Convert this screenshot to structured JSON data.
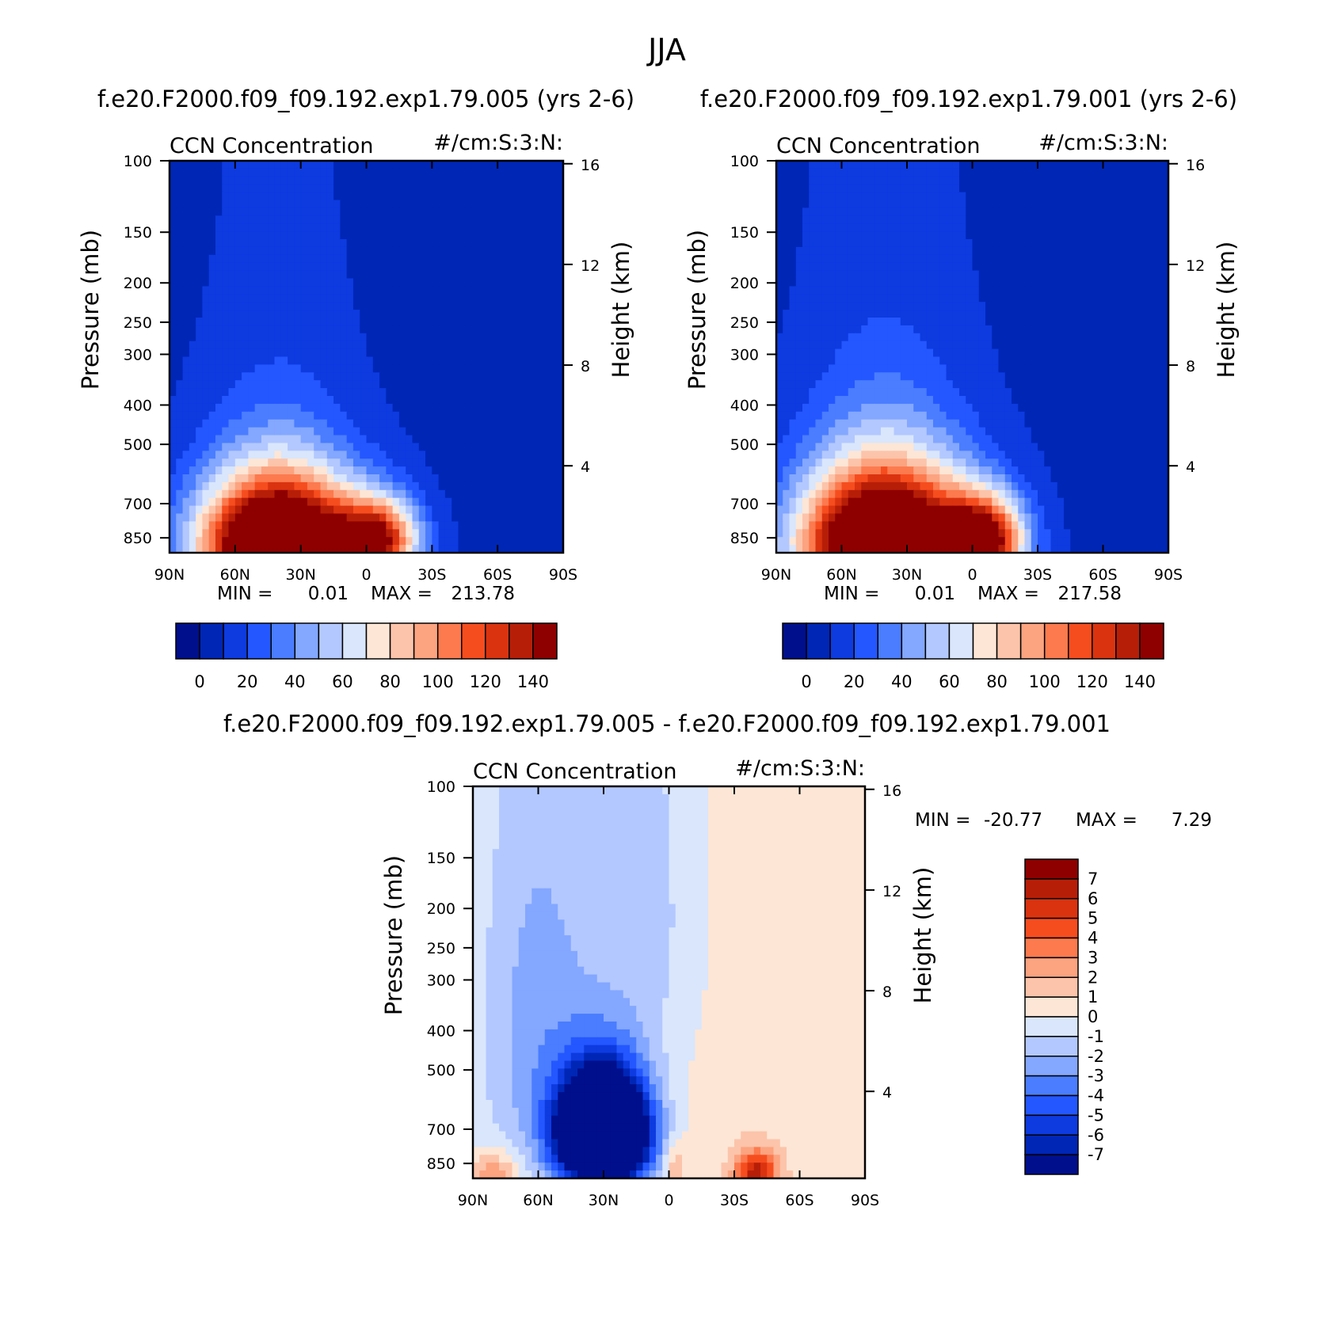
{
  "page_title": "JJA",
  "chart_data": [
    {
      "type": "heatmap",
      "id": "panel1",
      "title": "f.e20.F2000.f09_f09.192.exp1.79.005 (yrs 2-6)",
      "left_label": "CCN Concentration",
      "right_label": "#/cm:S:3:N:",
      "xlabel": "",
      "ylabel": "Pressure (mb)",
      "ylabel_right": "Height (km)",
      "x_ticks": [
        "90N",
        "60N",
        "30N",
        "0",
        "30S",
        "60S",
        "90S"
      ],
      "x_tick_values": [
        90,
        60,
        30,
        0,
        -30,
        -60,
        -90
      ],
      "y_ticks": [
        "100",
        "150",
        "200",
        "250",
        "300",
        "400",
        "500",
        "700",
        "850"
      ],
      "y_tick_values": [
        100,
        150,
        200,
        250,
        300,
        400,
        500,
        700,
        850
      ],
      "y_range": [
        100,
        925
      ],
      "height_ticks": [
        "16",
        "12",
        "8",
        "4"
      ],
      "height_tick_values": [
        16,
        12,
        8,
        4
      ],
      "min_label": "MIN =",
      "min_value": "0.01",
      "max_label": "MAX =",
      "max_value": "213.78",
      "colorbar_labels": [
        "0",
        "20",
        "40",
        "60",
        "80",
        "100",
        "120",
        "140"
      ],
      "contour_levels": [
        0,
        10,
        20,
        30,
        40,
        50,
        60,
        70,
        80,
        90,
        100,
        110,
        120,
        130,
        140
      ],
      "colors": [
        "#000f8c",
        "#0026b6",
        "#0d3be0",
        "#2457ff",
        "#4a7dff",
        "#84a7ff",
        "#b3c8ff",
        "#d9e6fc",
        "#fde6d6",
        "#fcc4aa",
        "#fca380",
        "#fc7a4e",
        "#f64d1f",
        "#da3310",
        "#b71e08",
        "#8e0000"
      ],
      "field": {
        "background": 7,
        "centers": [
          [
            40,
            880,
            215,
            35,
            300
          ],
          [
            -5,
            860,
            120,
            18,
            180
          ],
          [
            40,
            470,
            8,
            35,
            500
          ]
        ]
      }
    },
    {
      "type": "heatmap",
      "id": "panel2",
      "title": "f.e20.F2000.f09_f09.192.exp1.79.001 (yrs 2-6)",
      "left_label": "CCN Concentration",
      "right_label": "#/cm:S:3:N:",
      "xlabel": "",
      "ylabel": "Pressure (mb)",
      "ylabel_right": "Height (km)",
      "x_ticks": [
        "90N",
        "60N",
        "30N",
        "0",
        "30S",
        "60S",
        "90S"
      ],
      "x_tick_values": [
        90,
        60,
        30,
        0,
        -30,
        -60,
        -90
      ],
      "y_ticks": [
        "100",
        "150",
        "200",
        "250",
        "300",
        "400",
        "500",
        "700",
        "850"
      ],
      "y_tick_values": [
        100,
        150,
        200,
        250,
        300,
        400,
        500,
        700,
        850
      ],
      "y_range": [
        100,
        925
      ],
      "height_ticks": [
        "16",
        "12",
        "8",
        "4"
      ],
      "height_tick_values": [
        16,
        12,
        8,
        4
      ],
      "min_label": "MIN =",
      "min_value": "0.01",
      "max_label": "MAX =",
      "max_value": "217.58",
      "colorbar_labels": [
        "0",
        "20",
        "40",
        "60",
        "80",
        "100",
        "120",
        "140"
      ],
      "contour_levels": [
        0,
        10,
        20,
        30,
        40,
        50,
        60,
        70,
        80,
        90,
        100,
        110,
        120,
        130,
        140
      ],
      "colors": [
        "#000f8c",
        "#0026b6",
        "#0d3be0",
        "#2457ff",
        "#4a7dff",
        "#84a7ff",
        "#b3c8ff",
        "#d9e6fc",
        "#fde6d6",
        "#fcc4aa",
        "#fca380",
        "#fc7a4e",
        "#f64d1f",
        "#da3310",
        "#b71e08",
        "#8e0000"
      ],
      "field": {
        "background": 7,
        "centers": [
          [
            40,
            880,
            217,
            38,
            330
          ],
          [
            -5,
            860,
            130,
            18,
            190
          ],
          [
            40,
            440,
            9,
            38,
            520
          ]
        ]
      }
    },
    {
      "type": "heatmap",
      "id": "panel3",
      "title": "f.e20.F2000.f09_f09.192.exp1.79.005 - f.e20.F2000.f09_f09.192.exp1.79.001",
      "left_label": "CCN Concentration",
      "right_label": "#/cm:S:3:N:",
      "xlabel": "",
      "ylabel": "Pressure (mb)",
      "ylabel_right": "Height (km)",
      "x_ticks": [
        "90N",
        "60N",
        "30N",
        "0",
        "30S",
        "60S",
        "90S"
      ],
      "x_tick_values": [
        90,
        60,
        30,
        0,
        -30,
        -60,
        -90
      ],
      "y_ticks": [
        "100",
        "150",
        "200",
        "250",
        "300",
        "400",
        "500",
        "700",
        "850"
      ],
      "y_tick_values": [
        100,
        150,
        200,
        250,
        300,
        400,
        500,
        700,
        850
      ],
      "y_range": [
        100,
        925
      ],
      "height_ticks": [
        "16",
        "12",
        "8",
        "4"
      ],
      "height_tick_values": [
        16,
        12,
        8,
        4
      ],
      "min_label": "MIN =",
      "min_value": "-20.77",
      "max_label": "MAX =",
      "max_value": "7.29",
      "colorbar_labels": [
        "7",
        "6",
        "5",
        "4",
        "3",
        "2",
        "1",
        "0",
        "-1",
        "-2",
        "-3",
        "-4",
        "-5",
        "-6",
        "-7"
      ],
      "contour_levels": [
        -7,
        -6,
        -5,
        -4,
        -3,
        -2,
        -1,
        0,
        1,
        2,
        3,
        4,
        5,
        6,
        7
      ],
      "colors": [
        "#000f8c",
        "#0026b6",
        "#0d3be0",
        "#2457ff",
        "#4a7dff",
        "#84a7ff",
        "#b3c8ff",
        "#d9e6fc",
        "#fde6d6",
        "#fcc4aa",
        "#fca380",
        "#fc7a4e",
        "#f64d1f",
        "#da3310",
        "#b71e08",
        "#8e0000"
      ],
      "field": {
        "background": 0.5,
        "centers": [
          [
            30,
            720,
            -21,
            20,
            220
          ],
          [
            60,
            400,
            -3,
            30,
            500
          ],
          [
            10,
            200,
            -1.8,
            25,
            300
          ],
          [
            -40,
            900,
            6,
            10,
            120
          ],
          [
            80,
            900,
            3,
            10,
            100
          ],
          [
            -3,
            850,
            2,
            5,
            120
          ]
        ]
      }
    }
  ]
}
